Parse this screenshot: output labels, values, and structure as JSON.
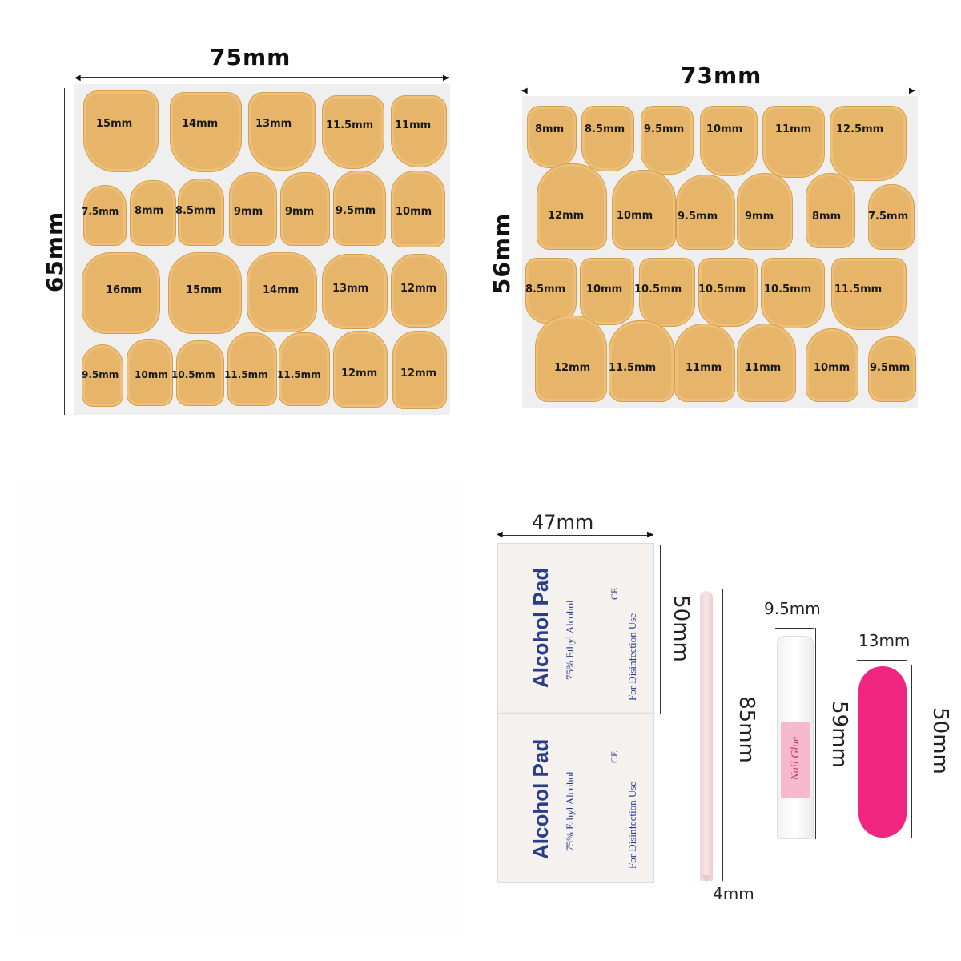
{
  "sheet1": {
    "width_label": "75mm",
    "height_label": "65mm",
    "rows": [
      [
        "15mm",
        "14mm",
        "13mm",
        "11.5mm",
        "11mm"
      ],
      [
        "7.5mm",
        "8mm",
        "8.5mm",
        "9mm",
        "9mm",
        "9.5mm",
        "10mm"
      ],
      [
        "16mm",
        "15mm",
        "14mm",
        "13mm",
        "12mm"
      ],
      [
        "9.5mm",
        "10mm",
        "10.5mm",
        "11.5mm",
        "11.5mm",
        "12mm",
        "12mm"
      ]
    ]
  },
  "sheet2": {
    "width_label": "73mm",
    "height_label": "56mm",
    "rows": [
      [
        "8mm",
        "8.5mm",
        "9.5mm",
        "10mm",
        "11mm",
        "12.5mm"
      ],
      [
        "12mm",
        "10mm",
        "9.5mm",
        "9mm",
        "8mm",
        "7.5mm"
      ],
      [
        "8.5mm",
        "10mm",
        "10.5mm",
        "10.5mm",
        "10.5mm",
        "11.5mm"
      ],
      [
        "12mm",
        "11.5mm",
        "11mm",
        "11mm",
        "10mm",
        "9.5mm"
      ]
    ]
  },
  "alcohol_pad": {
    "width_label": "47mm",
    "height_label": "50mm",
    "title": "Alcohol Pad",
    "subtitle": "75% Ethyl Alcohol",
    "note": "For Disinfection Use",
    "mark": "CE"
  },
  "stick": {
    "length_label": "85mm",
    "width_label": "4mm"
  },
  "glue": {
    "width_label": "9.5mm",
    "height_label": "59mm",
    "text": "Nail Glue"
  },
  "file": {
    "width_label": "13mm",
    "height_label": "50mm"
  },
  "colors": {
    "tab": "#e6b56a",
    "pad_text": "#2a3c8a",
    "file": "#f0257f",
    "glue_label": "#f6b8cc"
  }
}
